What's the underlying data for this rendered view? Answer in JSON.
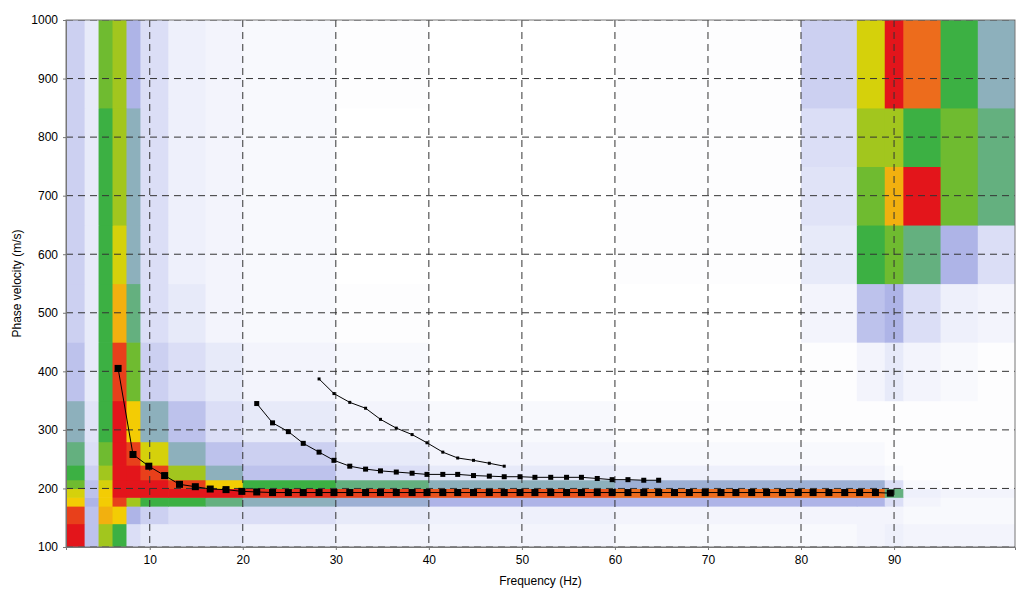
{
  "chart_data": {
    "type": "heatmap",
    "x_label": "Frequency (Hz)",
    "y_label": "Phase velocity (m/s)",
    "xlim": [
      1,
      103
    ],
    "ylim": [
      100,
      1000
    ],
    "xticks": [
      10,
      20,
      30,
      40,
      50,
      60,
      70,
      80,
      90
    ],
    "yticks": [
      100,
      200,
      300,
      400,
      500,
      600,
      700,
      800,
      900,
      1000
    ],
    "grid": true,
    "heatmap": {
      "x_edges": [
        1,
        3,
        4.5,
        6,
        7.5,
        9,
        12,
        16,
        20,
        30,
        40,
        60,
        80,
        86,
        89,
        91,
        95,
        99,
        103
      ],
      "y_edges": [
        100,
        140,
        170,
        185,
        200,
        215,
        240,
        280,
        350,
        450,
        550,
        650,
        750,
        850,
        1000
      ],
      "values": [
        [
          0.95,
          0.3,
          0.6,
          0.5,
          0.2,
          0.15,
          0.15,
          0.15,
          0.12,
          0.1,
          0.1,
          0.08,
          0.08,
          0.1,
          0.12,
          0.1,
          0.1,
          0.1
        ],
        [
          0.9,
          0.3,
          0.75,
          0.7,
          0.35,
          0.25,
          0.2,
          0.2,
          0.2,
          0.15,
          0.12,
          0.1,
          0.1,
          0.1,
          0.1,
          0.08,
          0.08,
          0.08
        ],
        [
          0.7,
          0.35,
          0.7,
          0.9,
          0.6,
          0.5,
          0.5,
          0.45,
          0.4,
          0.38,
          0.35,
          0.35,
          0.35,
          0.35,
          0.2,
          0.1,
          0.08,
          0.08
        ],
        [
          0.65,
          0.3,
          0.7,
          0.95,
          0.95,
          0.95,
          0.95,
          0.95,
          0.92,
          0.9,
          0.88,
          0.85,
          0.85,
          0.85,
          0.45,
          0.12,
          0.1,
          0.1
        ],
        [
          0.55,
          0.3,
          0.65,
          0.95,
          0.95,
          0.95,
          0.9,
          0.7,
          0.5,
          0.45,
          0.4,
          0.38,
          0.38,
          0.38,
          0.2,
          0.08,
          0.06,
          0.06
        ],
        [
          0.5,
          0.25,
          0.6,
          0.95,
          0.95,
          0.9,
          0.6,
          0.4,
          0.3,
          0.2,
          0.15,
          0.12,
          0.1,
          0.1,
          0.08,
          0.06,
          0.06,
          0.06
        ],
        [
          0.45,
          0.2,
          0.55,
          0.95,
          0.9,
          0.65,
          0.4,
          0.3,
          0.25,
          0.15,
          0.1,
          0.08,
          0.08,
          0.08,
          0.06,
          0.06,
          0.06,
          0.06
        ],
        [
          0.4,
          0.18,
          0.5,
          0.95,
          0.7,
          0.4,
          0.3,
          0.2,
          0.15,
          0.1,
          0.08,
          0.06,
          0.06,
          0.06,
          0.06,
          0.06,
          0.06,
          0.06
        ],
        [
          0.3,
          0.15,
          0.5,
          0.9,
          0.55,
          0.25,
          0.2,
          0.15,
          0.1,
          0.08,
          0.05,
          0.05,
          0.06,
          0.1,
          0.15,
          0.1,
          0.08,
          0.06
        ],
        [
          0.25,
          0.15,
          0.5,
          0.75,
          0.45,
          0.2,
          0.15,
          0.1,
          0.08,
          0.06,
          0.05,
          0.05,
          0.1,
          0.3,
          0.35,
          0.2,
          0.12,
          0.1
        ],
        [
          0.25,
          0.15,
          0.5,
          0.65,
          0.4,
          0.2,
          0.12,
          0.1,
          0.08,
          0.05,
          0.05,
          0.06,
          0.15,
          0.5,
          0.55,
          0.45,
          0.35,
          0.2
        ],
        [
          0.25,
          0.15,
          0.5,
          0.6,
          0.4,
          0.2,
          0.12,
          0.1,
          0.08,
          0.05,
          0.05,
          0.06,
          0.18,
          0.55,
          0.75,
          0.95,
          0.55,
          0.45
        ],
        [
          0.25,
          0.15,
          0.5,
          0.6,
          0.4,
          0.2,
          0.12,
          0.1,
          0.08,
          0.05,
          0.05,
          0.06,
          0.2,
          0.6,
          0.6,
          0.5,
          0.55,
          0.45
        ],
        [
          0.25,
          0.15,
          0.55,
          0.6,
          0.35,
          0.2,
          0.12,
          0.1,
          0.08,
          0.06,
          0.05,
          0.06,
          0.25,
          0.65,
          0.95,
          0.85,
          0.5,
          0.4
        ]
      ]
    },
    "series": [
      {
        "type": "line",
        "marker": "square",
        "color": "#000000",
        "x": [
          6.6,
          8.2,
          9.9,
          11.6,
          13.2,
          14.9,
          16.5,
          18.2,
          19.9,
          21.5,
          23.2,
          24.9,
          26.5,
          28.2,
          29.8,
          31.5,
          33.2,
          34.8,
          36.5,
          38.2,
          39.8,
          41.5,
          43.1,
          44.8,
          46.5,
          48.1,
          49.8,
          51.4,
          53.1,
          54.8,
          56.4,
          58.1,
          59.7,
          61.4,
          63.1,
          64.7,
          66.4,
          68.0,
          69.7,
          71.4,
          73.0,
          74.7,
          76.3,
          78.0,
          79.7,
          81.3,
          83.0,
          84.7,
          86.3,
          88.0,
          89.6
        ],
        "values": [
          405,
          258,
          238,
          222,
          207,
          203,
          199,
          198,
          195,
          194,
          193,
          193,
          193,
          193,
          193,
          193,
          193,
          193,
          193,
          193,
          193,
          193,
          193,
          193,
          193,
          193,
          193,
          193,
          193,
          193,
          193,
          193,
          193,
          193,
          193,
          193,
          193,
          193,
          193,
          193,
          193,
          193,
          193,
          193,
          193,
          193,
          193,
          193,
          193,
          193,
          192
        ]
      },
      {
        "type": "line",
        "marker": "small_square",
        "color": "#000000",
        "x": [
          21.5,
          23.2,
          24.9,
          26.5,
          28.2,
          29.8,
          31.5,
          33.2,
          34.8,
          36.5,
          38.2,
          39.8,
          41.5,
          43.1,
          44.8,
          46.5,
          48.1,
          49.8,
          51.4,
          53.1,
          54.8,
          56.4,
          58.1,
          59.7,
          61.4,
          63.1,
          64.7
        ],
        "values": [
          345,
          312,
          297,
          277,
          262,
          248,
          238,
          233,
          230,
          228,
          226,
          224,
          224,
          224,
          222,
          221,
          220,
          220,
          219,
          219,
          219,
          219,
          217,
          215,
          215,
          214,
          214
        ]
      },
      {
        "type": "line",
        "marker": "point",
        "color": "#000000",
        "x": [
          28.2,
          29.8,
          31.5,
          33.2,
          34.8,
          36.5,
          38.2,
          39.8,
          41.5,
          43.1,
          44.8,
          46.5,
          48.1
        ],
        "values": [
          387,
          362,
          347,
          337,
          318,
          303,
          292,
          278,
          262,
          252,
          248,
          243,
          238
        ]
      }
    ]
  }
}
